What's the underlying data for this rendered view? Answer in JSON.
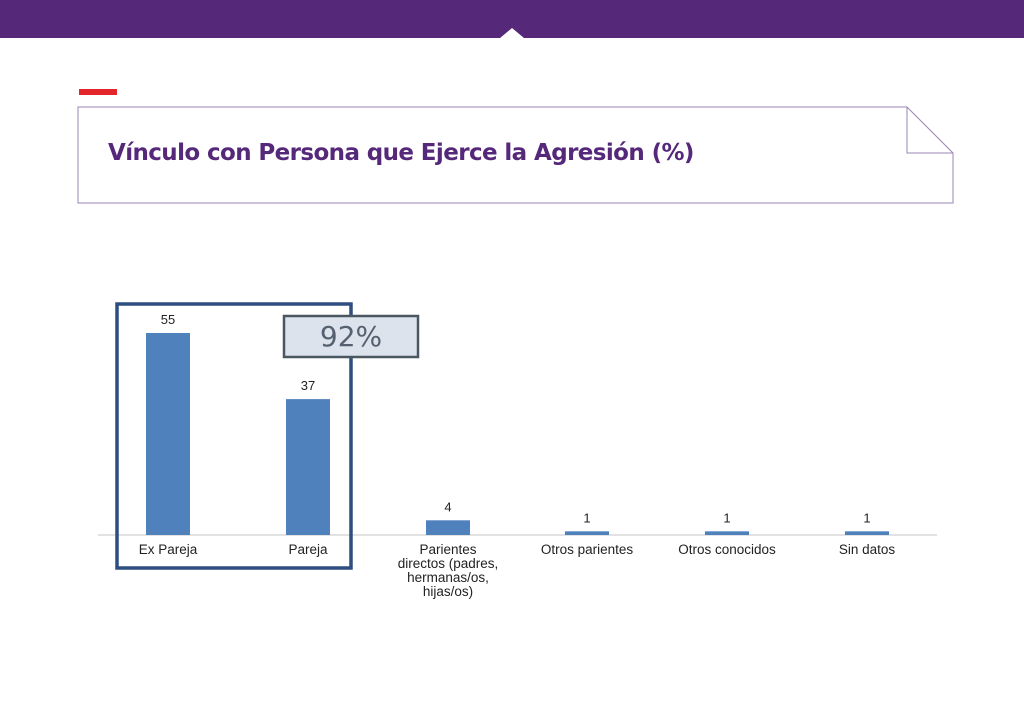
{
  "header": {
    "title": "Vínculo con Persona que Ejerce la Agresión (%)"
  },
  "colors": {
    "brand_purple": "#55287a",
    "accent_red": "#e3262b",
    "bar_blue": "#4f81bd",
    "highlight_border": "#2f4e80",
    "callout_fill": "#dde3ec",
    "callout_border": "#4a5660"
  },
  "chart_data": {
    "type": "bar",
    "categories": [
      [
        "Ex Pareja"
      ],
      [
        "Pareja"
      ],
      [
        "Parientes",
        "directos (padres,",
        "hermanas/os,",
        "hijas/os)"
      ],
      [
        "Otros parientes"
      ],
      [
        "Otros conocidos"
      ],
      [
        "Sin datos"
      ]
    ],
    "values": [
      55,
      37,
      4,
      1,
      1,
      1
    ],
    "data_labels": [
      "55",
      "37",
      "4",
      "1",
      "1",
      "1"
    ],
    "ylim": [
      0,
      60
    ],
    "grid": false,
    "legend": "none",
    "annotation": {
      "text": "92%",
      "highlights_categories": [
        "Ex Pareja",
        "Pareja"
      ]
    }
  }
}
